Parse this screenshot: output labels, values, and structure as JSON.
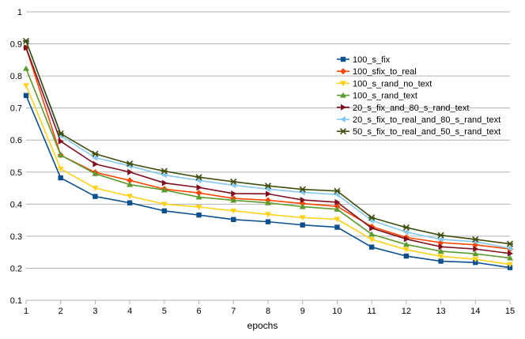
{
  "chart_data": {
    "type": "line",
    "title": "",
    "xlabel": "epochs",
    "ylabel": "",
    "x": [
      1,
      2,
      3,
      4,
      5,
      6,
      7,
      8,
      9,
      10,
      11,
      12,
      13,
      14,
      15
    ],
    "xlim": [
      1,
      15
    ],
    "ylim": [
      0.1,
      1
    ],
    "yticks": [
      0.1,
      0.2,
      0.3,
      0.4,
      0.5,
      0.6,
      0.7,
      0.8,
      0.9,
      1
    ],
    "ytick_labels": [
      "0.1",
      "0.2",
      "0.3",
      "0.4",
      "0.5",
      "0.6",
      "0.7",
      "0.8",
      "0.9",
      "1"
    ],
    "grid": "horizontal",
    "legend_position": "right",
    "series": [
      {
        "name": "100_s_fix",
        "color": "#0b4f8f",
        "marker": "square",
        "values": [
          0.739,
          0.482,
          0.424,
          0.404,
          0.379,
          0.366,
          0.352,
          0.345,
          0.335,
          0.328,
          0.266,
          0.238,
          0.222,
          0.218,
          0.202
        ]
      },
      {
        "name": "100_sfix_to_real",
        "color": "#ff4500",
        "marker": "diamond",
        "values": [
          0.888,
          0.553,
          0.499,
          0.474,
          0.447,
          0.435,
          0.418,
          0.412,
          0.402,
          0.393,
          0.33,
          0.296,
          0.28,
          0.273,
          0.26
        ]
      },
      {
        "name": "100_s_rand_no_text",
        "color": "#ffd21a",
        "marker": "triangle-down",
        "values": [
          0.77,
          0.51,
          0.45,
          0.425,
          0.4,
          0.391,
          0.379,
          0.368,
          0.358,
          0.353,
          0.29,
          0.258,
          0.237,
          0.228,
          0.212
        ]
      },
      {
        "name": "100_s_rand_text",
        "color": "#5b9a2e",
        "marker": "triangle-up",
        "values": [
          0.823,
          0.553,
          0.495,
          0.461,
          0.444,
          0.422,
          0.412,
          0.404,
          0.392,
          0.384,
          0.306,
          0.274,
          0.253,
          0.245,
          0.232
        ]
      },
      {
        "name": "20_s_fix_and_80_s_rand_text",
        "color": "#7f0e1f",
        "marker": "triangle-right",
        "values": [
          0.888,
          0.596,
          0.525,
          0.5,
          0.466,
          0.452,
          0.433,
          0.432,
          0.413,
          0.406,
          0.325,
          0.291,
          0.267,
          0.26,
          0.246
        ]
      },
      {
        "name": "20_s_fix_to_real_and_80_s_rand_text",
        "color": "#86c9ee",
        "marker": "triangle-left",
        "values": [
          0.908,
          0.614,
          0.545,
          0.519,
          0.491,
          0.474,
          0.459,
          0.447,
          0.437,
          0.43,
          0.349,
          0.313,
          0.29,
          0.283,
          0.262
        ]
      },
      {
        "name": "50_s_fix_to_real_and_50_s_rand_text",
        "color": "#3d4d0c",
        "marker": "star",
        "values": [
          0.909,
          0.62,
          0.557,
          0.526,
          0.503,
          0.484,
          0.47,
          0.457,
          0.446,
          0.441,
          0.358,
          0.327,
          0.303,
          0.29,
          0.276
        ]
      }
    ]
  }
}
